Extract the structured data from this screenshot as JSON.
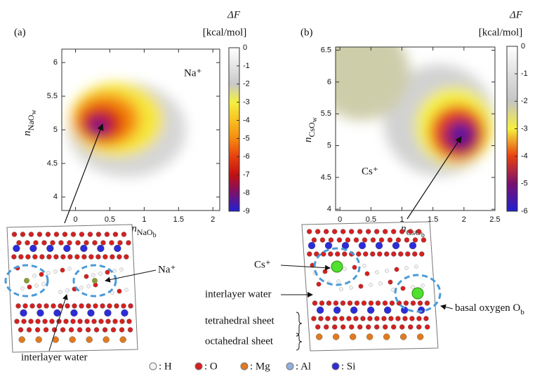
{
  "chart_data": [
    {
      "type": "heatmap",
      "panel_label": "(a)",
      "colorbar_title": "ΔF",
      "colorbar_unit": "[kcal/mol]",
      "annotation": "Na⁺",
      "xlabel": [
        "n",
        "NaO",
        "b"
      ],
      "ylabel": [
        "n",
        "NaO",
        "w"
      ],
      "xlim": [
        -0.2,
        2.1
      ],
      "ylim": [
        3.8,
        6.2
      ],
      "xticks": [
        0,
        0.5,
        1,
        1.5,
        2
      ],
      "yticks": [
        4,
        4.5,
        5,
        5.5,
        6
      ],
      "clim": [
        -9,
        0
      ],
      "cticks": [
        0,
        -1,
        -2,
        -3,
        -4,
        -5,
        -6,
        -7,
        -8,
        -9
      ],
      "ccolors": [
        "#ffffff",
        "#e4e4e4",
        "#c8c8c8",
        "#f5f040",
        "#f8c020",
        "#f58a10",
        "#e84010",
        "#c01010",
        "#7a1070",
        "#2020d0"
      ],
      "regions": [
        {
          "x": 0.75,
          "y": 5.0,
          "value": -1.5
        },
        {
          "x": 0.6,
          "y": 5.15,
          "value": -3.2
        },
        {
          "x": 0.45,
          "y": 5.15,
          "value": -5
        },
        {
          "x": 0.38,
          "y": 5.1,
          "value": -6.5
        },
        {
          "x": 0.34,
          "y": 5.06,
          "value": -8
        },
        {
          "x": 0.33,
          "y": 5.05,
          "value": -9
        }
      ]
    },
    {
      "type": "heatmap",
      "panel_label": "(b)",
      "colorbar_title": "ΔF",
      "colorbar_unit": "[kcal/mol]",
      "annotation": "Cs⁺",
      "xlabel": [
        "n",
        "CsO",
        "b"
      ],
      "ylabel": [
        "n",
        "CsO",
        "w"
      ],
      "xlim": [
        -0.07,
        2.5
      ],
      "ylim": [
        3.98,
        6.55
      ],
      "xticks": [
        0,
        0.5,
        1,
        1.5,
        2,
        2.5
      ],
      "yticks": [
        4,
        4.5,
        5,
        5.5,
        6,
        6.5
      ],
      "clim": [
        -6,
        0
      ],
      "cticks": [
        0,
        -1,
        -2,
        -3,
        -4,
        -5,
        -6
      ],
      "ccolors": [
        "#ffffff",
        "#e0e0e0",
        "#c4c4c4",
        "#f5f040",
        "#e84010",
        "#7a1070",
        "#2020d0"
      ],
      "regions": [
        {
          "x": 1.6,
          "y": 5.4,
          "value": -1.5
        },
        {
          "x": 0.35,
          "y": 6.15,
          "value": -2.2
        },
        {
          "x": 1.85,
          "y": 5.3,
          "value": -3
        },
        {
          "x": 1.9,
          "y": 5.2,
          "value": -4
        },
        {
          "x": 1.95,
          "y": 5.15,
          "value": -5
        },
        {
          "x": 1.95,
          "y": 5.2,
          "value": -6
        }
      ]
    }
  ],
  "structures": [
    {
      "labels": [
        "Na⁺",
        "interlayer water"
      ]
    },
    {
      "labels": [
        "Cs⁺",
        "interlayer water",
        "tetrahedral sheet",
        "octahedral sheet"
      ],
      "oxygen_label": [
        "basal oxygen O",
        "b"
      ]
    }
  ],
  "legend": [
    ": H",
    ": O",
    ": Mg",
    ": Al",
    ": Si"
  ]
}
